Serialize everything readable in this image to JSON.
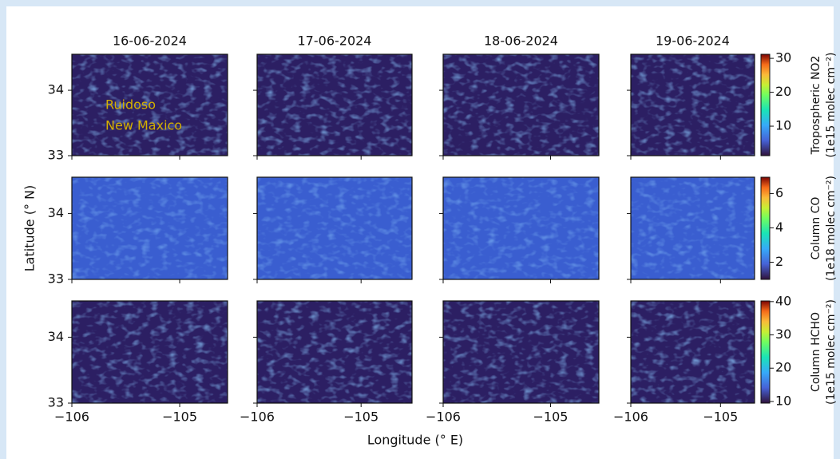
{
  "chart_data": {
    "type": "heatmap-grid",
    "xlabel": "Longitude (° E)",
    "ylabel": "Latitude (° N)",
    "annotation": [
      "Ruidoso",
      "New Maxico"
    ],
    "columns": [
      {
        "title": "16-06-2024",
        "xlim": [
          -106,
          -104.556
        ],
        "xticks": [
          {
            "value": -106,
            "label": "−106"
          },
          {
            "value": -105,
            "label": "−105"
          }
        ]
      },
      {
        "title": "17-06-2024",
        "xlim": [
          -106,
          -104.51
        ],
        "xticks": [
          {
            "value": -106,
            "label": "−106"
          },
          {
            "value": -105,
            "label": "−105"
          }
        ]
      },
      {
        "title": "18-06-2024",
        "xlim": [
          -106,
          -104.55
        ],
        "xticks": [
          {
            "value": -106,
            "label": "−106"
          },
          {
            "value": -105,
            "label": "−105"
          }
        ]
      },
      {
        "title": "19-06-2024",
        "xlim": [
          -106,
          -104.62
        ],
        "xticks": [
          {
            "value": -106,
            "label": "−106"
          },
          {
            "value": -105,
            "label": "−105"
          }
        ]
      }
    ],
    "rows": [
      {
        "ylim": [
          33,
          34.55
        ],
        "yticks": [
          33,
          34
        ],
        "colorbar": {
          "label": [
            "Tropospheric NO2",
            "(1e15 molec cm⁻²)"
          ],
          "lim": [
            1.3,
            31.2
          ],
          "ticks": [
            10,
            20,
            30
          ]
        }
      },
      {
        "ylim": [
          33,
          34.55
        ],
        "yticks": [
          33,
          34
        ],
        "colorbar": {
          "label": [
            "Column CO",
            "(1e18 molec cm⁻²)"
          ],
          "lim": [
            1,
            6.95
          ],
          "ticks": [
            2,
            4,
            6
          ]
        }
      },
      {
        "ylim": [
          33,
          34.55
        ],
        "yticks": [
          33,
          34
        ],
        "colorbar": {
          "label": [
            "Column HCHO",
            "(1e15 molec cm⁻²)"
          ],
          "lim": [
            9.5,
            40.2
          ],
          "ticks": [
            10,
            20,
            30,
            40
          ]
        }
      }
    ]
  }
}
